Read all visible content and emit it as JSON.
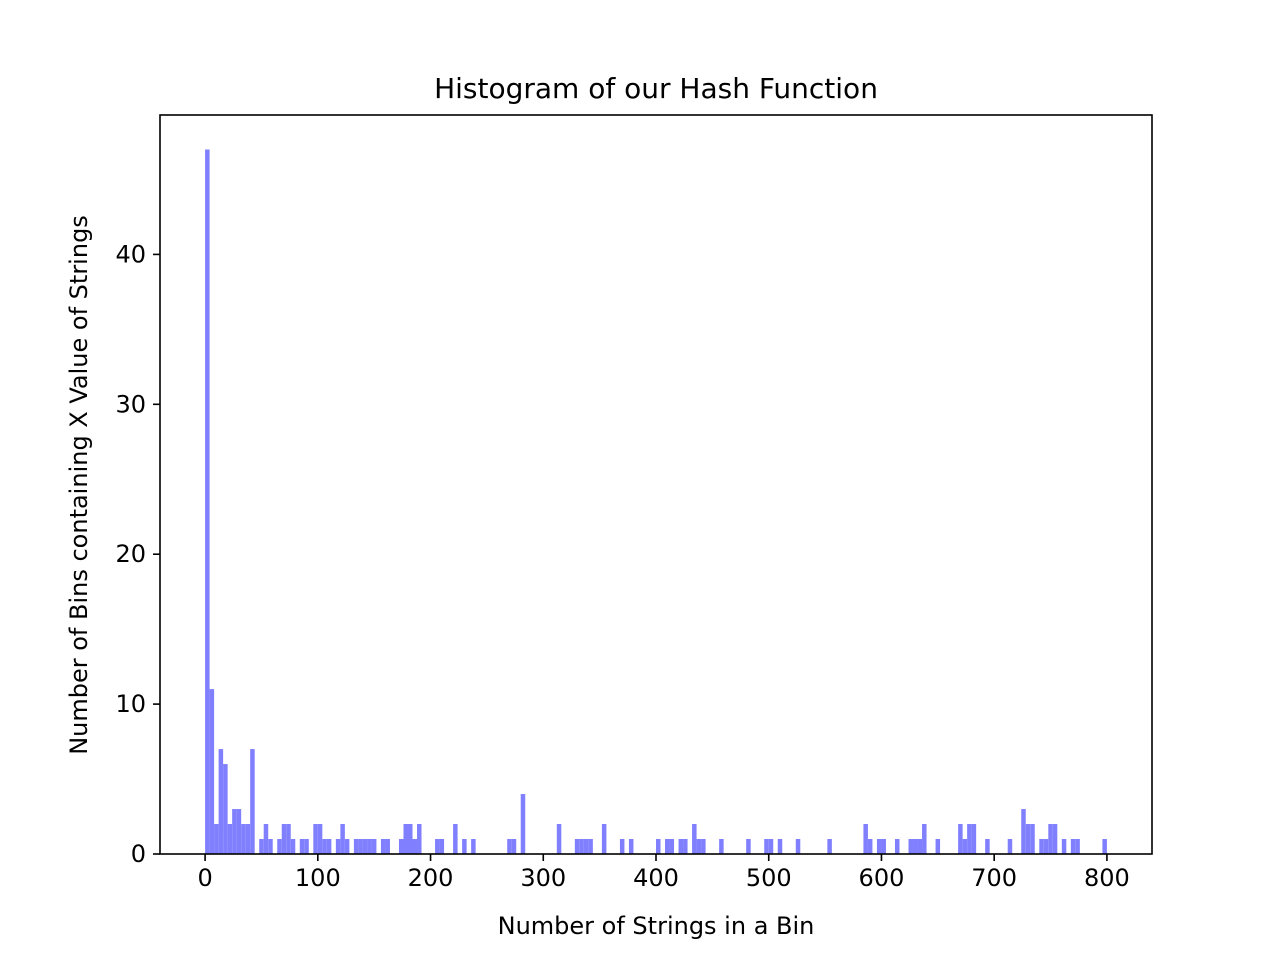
{
  "chart_data": {
    "type": "bar",
    "title": "Histogram of our Hash Function",
    "xlabel": "Number of Strings in a Bin",
    "ylabel": "Number of Bins containing X Value of Strings",
    "xlim": [
      -40,
      840
    ],
    "ylim": [
      0,
      49.3
    ],
    "x_ticks": [
      0,
      100,
      200,
      300,
      400,
      500,
      600,
      700,
      800
    ],
    "y_ticks": [
      0,
      10,
      20,
      30,
      40
    ],
    "bin_width": 4,
    "grid": false,
    "bar_color": "#8080ff",
    "series": [
      {
        "x": [
          0,
          4,
          8,
          12,
          16,
          20,
          24,
          28,
          32,
          36,
          40,
          48,
          52,
          56,
          64,
          68,
          72,
          76,
          84,
          88,
          96,
          100,
          104,
          108,
          116,
          120,
          124,
          132,
          136,
          140,
          144,
          148,
          156,
          160,
          172,
          176,
          180,
          184,
          188,
          204,
          208,
          220,
          228,
          236,
          268,
          272,
          280,
          312,
          328,
          332,
          336,
          340,
          352,
          368,
          376,
          400,
          408,
          412,
          420,
          424,
          432,
          436,
          440,
          456,
          480,
          496,
          500,
          508,
          524,
          552,
          584,
          588,
          596,
          600,
          612,
          624,
          628,
          632,
          636,
          648,
          668,
          672,
          676,
          680,
          692,
          712,
          724,
          728,
          732,
          740,
          744,
          748,
          752,
          760,
          768,
          772,
          796
        ],
        "values": [
          47,
          11,
          2,
          7,
          6,
          2,
          3,
          3,
          2,
          2,
          7,
          1,
          2,
          1,
          1,
          2,
          2,
          1,
          1,
          1,
          2,
          2,
          1,
          1,
          1,
          2,
          1,
          1,
          1,
          1,
          1,
          1,
          1,
          1,
          1,
          2,
          2,
          1,
          2,
          1,
          1,
          2,
          1,
          1,
          1,
          1,
          4,
          2,
          1,
          1,
          1,
          1,
          2,
          1,
          1,
          1,
          1,
          1,
          1,
          1,
          2,
          1,
          1,
          1,
          1,
          1,
          1,
          1,
          1,
          1,
          2,
          1,
          1,
          1,
          1,
          1,
          1,
          1,
          2,
          1,
          2,
          1,
          2,
          2,
          1,
          1,
          3,
          2,
          2,
          1,
          1,
          2,
          2,
          1,
          1,
          1,
          1
        ]
      }
    ]
  }
}
